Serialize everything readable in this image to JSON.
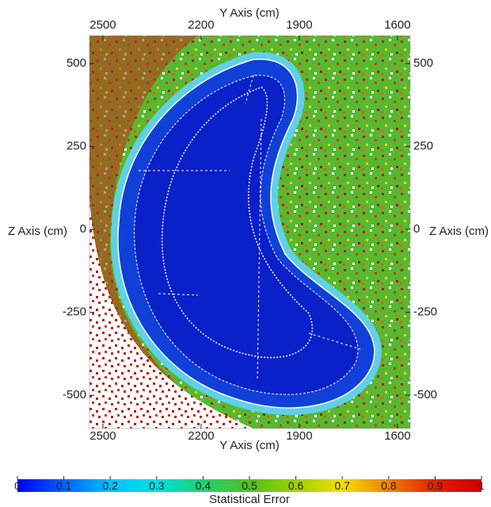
{
  "chart_data": {
    "type": "heatmap",
    "x_label": "Y Axis (cm)",
    "y_label": "Z Axis (cm)",
    "xlim": [
      2541,
      1561
    ],
    "xticks": [
      2500,
      2200,
      1900,
      1600
    ],
    "ylim": [
      -600,
      584
    ],
    "yticks": [
      -500,
      -250,
      0,
      250,
      500
    ],
    "colorbar": {
      "label": "Statistical Error",
      "range": [
        0,
        1
      ],
      "ticks": [
        0,
        0.1,
        0.2,
        0.3,
        0.4,
        0.5,
        0.6,
        0.7,
        0.8,
        0.9,
        1
      ],
      "colors": [
        "#0000ff",
        "#0060ff",
        "#00c0ff",
        "#00e0e0",
        "#20d070",
        "#50c020",
        "#a0d000",
        "#f0e000",
        "#f08000",
        "#e02000",
        "#cc0000"
      ]
    }
  }
}
